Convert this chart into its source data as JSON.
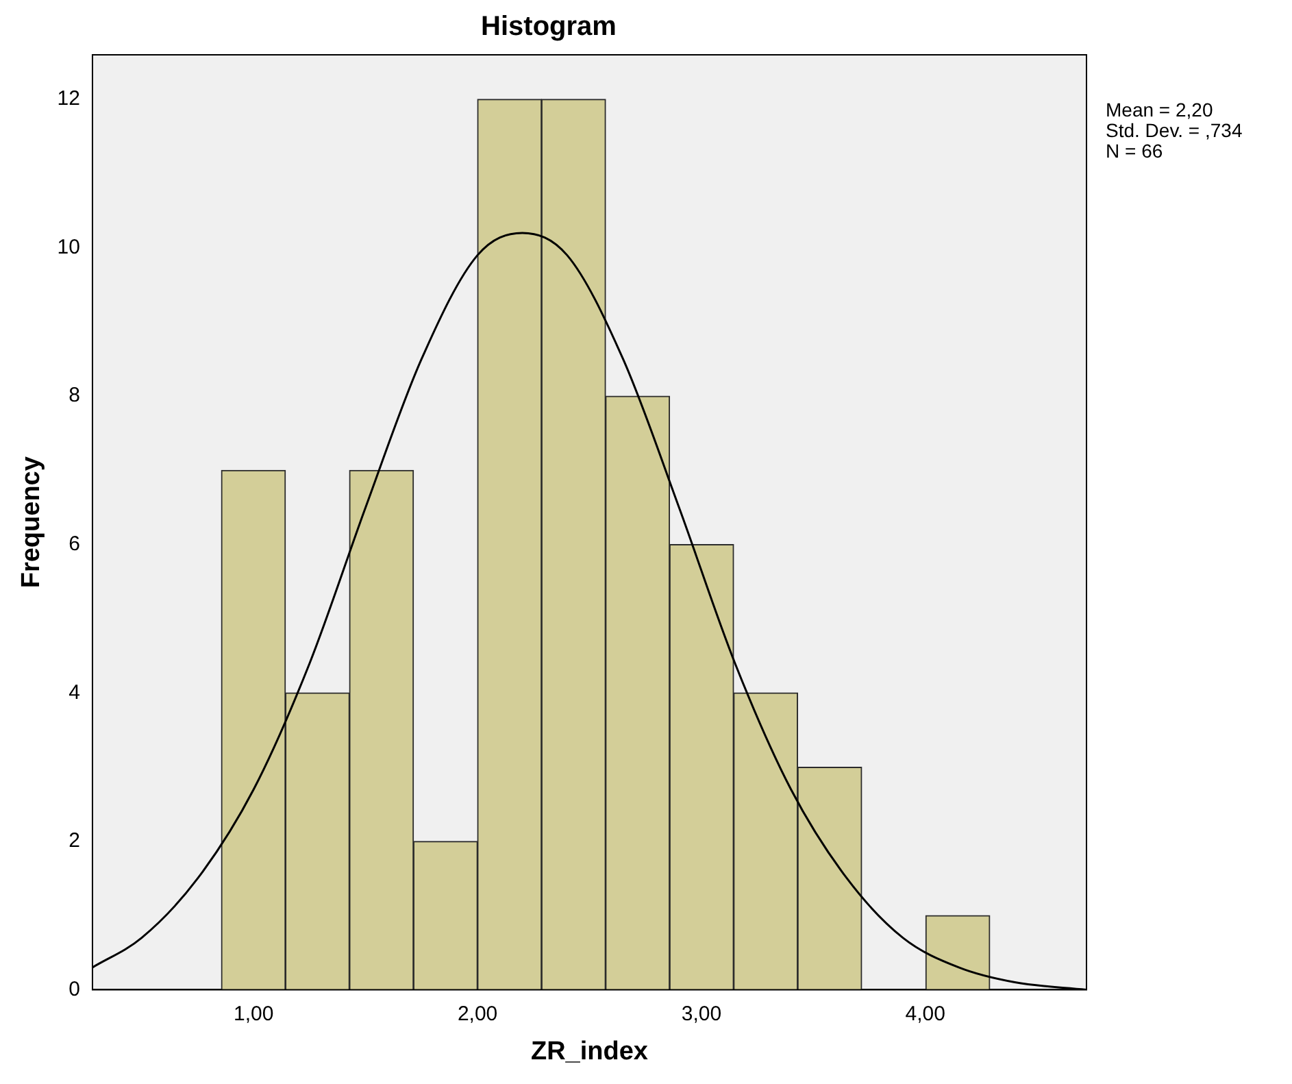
{
  "chart_data": {
    "type": "histogram",
    "title": "Histogram",
    "xlabel": "ZR_index",
    "ylabel": "Frequency",
    "bins": [
      0.856,
      1.142,
      1.428,
      1.714,
      2.0,
      2.286,
      2.572,
      2.858,
      3.144,
      3.43,
      3.716,
      4.002,
      4.288
    ],
    "values": [
      7,
      4,
      7,
      2,
      12,
      12,
      8,
      6,
      4,
      3,
      0,
      1
    ],
    "color": "#d3ce98",
    "series": [
      {
        "type": "line",
        "color": "#000000",
        "marker": "none",
        "x": [
          0.28,
          0.5,
          0.75,
          1.0,
          1.25,
          1.5,
          1.75,
          2.0,
          2.2,
          2.4,
          2.65,
          2.9,
          3.15,
          3.4,
          3.65,
          3.9,
          4.15,
          4.4,
          4.72
        ],
        "values": [
          0.3,
          0.7,
          1.5,
          2.7,
          4.4,
          6.5,
          8.5,
          9.9,
          10.2,
          9.9,
          8.5,
          6.5,
          4.4,
          2.7,
          1.5,
          0.7,
          0.3,
          0.1,
          0.0
        ]
      }
    ],
    "xlim": [
      0.28,
      4.72
    ],
    "xticks": [
      {
        "value": 1,
        "label": "1,00"
      },
      {
        "value": 2,
        "label": "2,00"
      },
      {
        "value": 3,
        "label": "3,00"
      },
      {
        "value": 4,
        "label": "4,00"
      }
    ],
    "ylim": [
      0,
      12.6
    ],
    "yticks": [
      0,
      2,
      4,
      6,
      8,
      10,
      12
    ],
    "grid": false,
    "legend": false,
    "annotations": [
      "Mean = 2,20",
      "Std. Dev. = ,734",
      "N = 66"
    ]
  }
}
